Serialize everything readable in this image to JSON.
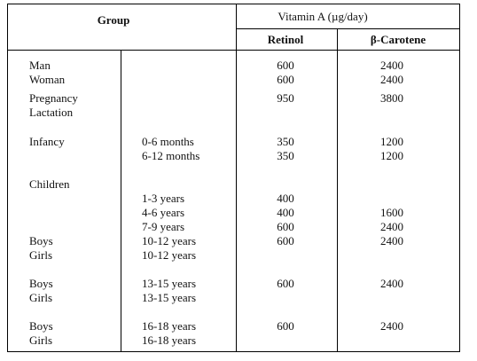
{
  "table": {
    "header": {
      "group": "Group",
      "vitamin_a": "Vitamin A (µg/day)",
      "retinol": "Retinol",
      "carotene": "β-Carotene"
    },
    "rows": [
      {
        "label": "Man",
        "age": "",
        "retinol": "600",
        "carotene": "2400"
      },
      {
        "label": "Woman",
        "age": "",
        "retinol": "600",
        "carotene": "2400"
      },
      {
        "label": "Pregnancy",
        "age": "",
        "retinol": "950",
        "carotene": "3800"
      },
      {
        "label": "Lactation",
        "age": "",
        "retinol": "",
        "carotene": ""
      },
      {
        "label": "Infancy",
        "age": "0-6 months",
        "retinol": "350",
        "carotene": "1200"
      },
      {
        "label": "",
        "age": "6-12 months",
        "retinol": "350",
        "carotene": "1200"
      },
      {
        "label": "Children",
        "age": "",
        "retinol": "",
        "carotene": ""
      },
      {
        "label": "",
        "age": "1-3 years",
        "retinol": "400",
        "carotene": ""
      },
      {
        "label": "",
        "age": "4-6 years",
        "retinol": "400",
        "carotene": "1600"
      },
      {
        "label": "",
        "age": "7-9 years",
        "retinol": "600",
        "carotene": "2400"
      },
      {
        "label": "Boys",
        "age": "10-12 years",
        "retinol": "600",
        "carotene": "2400"
      },
      {
        "label": "Girls",
        "age": "10-12 years",
        "retinol": "",
        "carotene": ""
      },
      {
        "label": "Boys",
        "age": "13-15 years",
        "retinol": "600",
        "carotene": "2400"
      },
      {
        "label": "Girls",
        "age": "13-15 years",
        "retinol": "",
        "carotene": ""
      },
      {
        "label": "Boys",
        "age": "16-18 years",
        "retinol": "600",
        "carotene": "2400"
      },
      {
        "label": "Girls",
        "age": "16-18 years",
        "retinol": "",
        "carotene": ""
      }
    ]
  }
}
